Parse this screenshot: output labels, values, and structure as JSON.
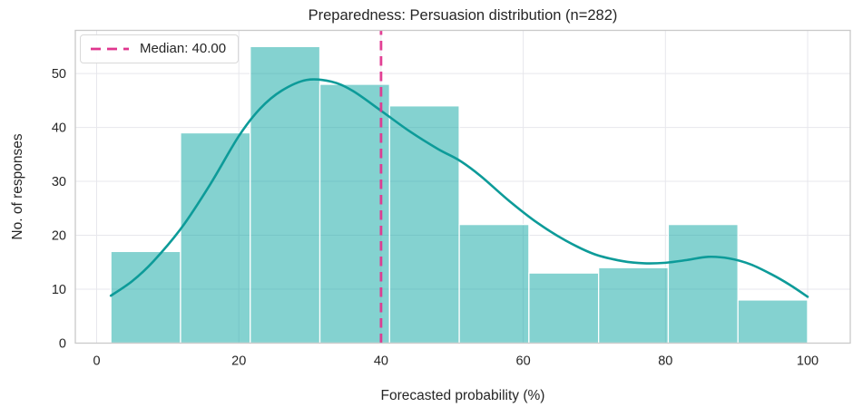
{
  "chart_data": {
    "type": "bar",
    "subtype": "histogram_with_kde",
    "title": "Preparedness: Persuasion distribution (n=282)",
    "xlabel": "Forecasted probability (%)",
    "ylabel": "No. of responses",
    "n": 282,
    "bin_edges": [
      2,
      11.8,
      21.6,
      31.4,
      41.2,
      51.0,
      60.8,
      70.6,
      80.4,
      90.2,
      100
    ],
    "counts": [
      17,
      39,
      55,
      48,
      44,
      22,
      13,
      14,
      22,
      8
    ],
    "median": 40.0,
    "median_label": "Median: 40.00",
    "kde_points": [
      [
        2,
        8.8
      ],
      [
        5,
        11.5
      ],
      [
        8,
        15.2
      ],
      [
        12,
        21.5
      ],
      [
        16,
        29.5
      ],
      [
        20,
        38.4
      ],
      [
        23,
        43.5
      ],
      [
        26,
        46.8
      ],
      [
        29.5,
        48.8
      ],
      [
        33,
        48.5
      ],
      [
        36,
        46.8
      ],
      [
        40,
        43.1
      ],
      [
        44,
        39.3
      ],
      [
        48,
        36.0
      ],
      [
        51,
        33.9
      ],
      [
        54,
        31.0
      ],
      [
        58,
        26.4
      ],
      [
        62,
        22.3
      ],
      [
        66,
        19.0
      ],
      [
        70,
        16.5
      ],
      [
        74,
        15.2
      ],
      [
        77,
        14.8
      ],
      [
        80,
        14.9
      ],
      [
        83,
        15.4
      ],
      [
        86,
        16.0
      ],
      [
        89,
        15.7
      ],
      [
        92,
        14.6
      ],
      [
        95,
        12.7
      ],
      [
        97.5,
        10.8
      ],
      [
        100,
        8.6
      ]
    ],
    "x_ticks": [
      0,
      20,
      40,
      60,
      80,
      100
    ],
    "y_ticks": [
      0,
      10,
      20,
      30,
      40,
      50
    ],
    "xlim": [
      -3,
      106
    ],
    "ylim": [
      0,
      58
    ],
    "grid": true,
    "legend_position": "upper left",
    "colors": {
      "bar_fill_base": "#0aa5a2",
      "bar_fill_opacity": 0.5,
      "bar_edge": "#ffffff",
      "kde_line": "#0d9b99",
      "median_line": "#e0368e",
      "grid": "#e7e7ec",
      "spine": "#c9c9c9",
      "text": "#262626"
    }
  }
}
